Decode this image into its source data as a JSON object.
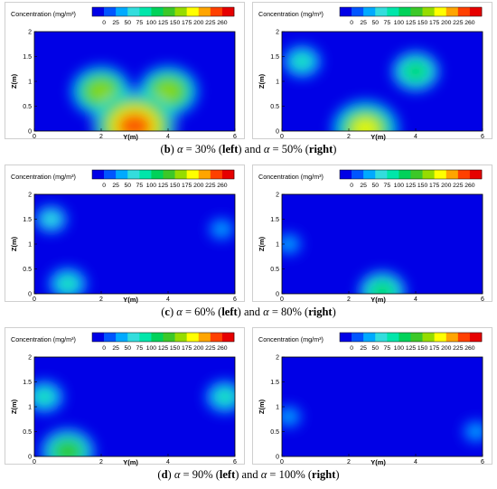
{
  "colorbar": {
    "title": "Concentration (mg/m³)",
    "ticks": [
      "0",
      "25",
      "50",
      "75",
      "100",
      "125",
      "150",
      "175",
      "200",
      "225",
      "260"
    ],
    "colors": [
      "#0000e6",
      "#0055ff",
      "#00aaff",
      "#33dddd",
      "#00e6aa",
      "#00d25a",
      "#3cc828",
      "#96dc00",
      "#ffff00",
      "#ffa500",
      "#ff4000",
      "#e60000"
    ]
  },
  "axes": {
    "xlabel": "Y(m)",
    "ylabel": "Z(m)",
    "xticks": [
      "0",
      "2",
      "4",
      "6"
    ],
    "yticks": [
      "0",
      "0.5",
      "1",
      "1.5",
      "2"
    ],
    "xlim": [
      0,
      6
    ],
    "ylim": [
      0,
      2
    ]
  },
  "rows": [
    {
      "caption": {
        "prefix": "(",
        "letter": "b",
        "mid1": ") ",
        "alpha": "α",
        "eq1": " = 30% (",
        "left": "left",
        "mid2": ") and ",
        "alpha2": "α",
        "eq2": " = 50% (",
        "right": "right",
        "end": ")"
      }
    },
    {
      "caption": {
        "prefix": "(",
        "letter": "c",
        "mid1": ") ",
        "alpha": "α",
        "eq1": " = 60% (",
        "left": "left",
        "mid2": ") and ",
        "alpha2": "α",
        "eq2": " = 80% (",
        "right": "right",
        "end": ")"
      }
    },
    {
      "caption": {
        "prefix": "(",
        "letter": "d",
        "mid1": ") ",
        "alpha": "α",
        "eq1": " = 90% (",
        "left": "left",
        "mid2": ") and ",
        "alpha2": "α",
        "eq2": " = 100% (",
        "right": "right",
        "end": ")"
      }
    }
  ],
  "chart_data": [
    {
      "type": "heatmap",
      "case": "α = 30%",
      "xlim": [
        0,
        6
      ],
      "ylim": [
        0,
        2
      ],
      "hotspots": [
        {
          "y": 2.0,
          "z": 0.8,
          "level": 175
        },
        {
          "y": 4.0,
          "z": 0.8,
          "level": 175
        },
        {
          "y": 3.0,
          "z": 0.1,
          "level": 260
        }
      ]
    },
    {
      "type": "heatmap",
      "case": "α = 50%",
      "xlim": [
        0,
        6
      ],
      "ylim": [
        0,
        2
      ],
      "hotspots": [
        {
          "y": 0.6,
          "z": 1.4,
          "level": 100
        },
        {
          "y": 4.0,
          "z": 1.2,
          "level": 125
        },
        {
          "y": 2.5,
          "z": 0.05,
          "level": 200
        }
      ]
    },
    {
      "type": "heatmap",
      "case": "α = 60%",
      "xlim": [
        0,
        6
      ],
      "ylim": [
        0,
        2
      ],
      "hotspots": [
        {
          "y": 0.5,
          "z": 1.5,
          "level": 75
        },
        {
          "y": 1.0,
          "z": 0.2,
          "level": 100
        },
        {
          "y": 5.6,
          "z": 1.3,
          "level": 50
        }
      ]
    },
    {
      "type": "heatmap",
      "case": "α = 80%",
      "xlim": [
        0,
        6
      ],
      "ylim": [
        0,
        2
      ],
      "hotspots": [
        {
          "y": 0.2,
          "z": 1.0,
          "level": 50
        },
        {
          "y": 3.0,
          "z": 0.05,
          "level": 125
        }
      ]
    },
    {
      "type": "heatmap",
      "case": "α = 90%",
      "xlim": [
        0,
        6
      ],
      "ylim": [
        0,
        2
      ],
      "hotspots": [
        {
          "y": 0.3,
          "z": 1.2,
          "level": 100
        },
        {
          "y": 5.7,
          "z": 1.2,
          "level": 100
        },
        {
          "y": 1.0,
          "z": 0.1,
          "level": 150
        }
      ]
    },
    {
      "type": "heatmap",
      "case": "α = 100%",
      "xlim": [
        0,
        6
      ],
      "ylim": [
        0,
        2
      ],
      "hotspots": [
        {
          "y": 0.2,
          "z": 0.8,
          "level": 50
        },
        {
          "y": 5.8,
          "z": 0.5,
          "level": 50
        }
      ]
    }
  ]
}
